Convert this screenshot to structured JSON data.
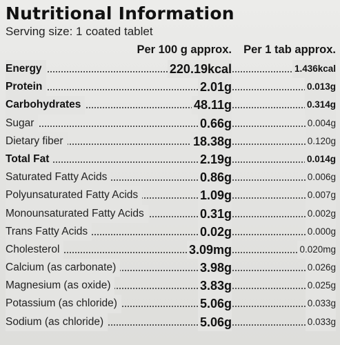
{
  "label": {
    "title": "Nutritional Information",
    "serving": "Serving size: 1 coated tablet",
    "col_per100": "Per 100 g approx.",
    "col_per1": "Per 1 tab approx.",
    "rows": [
      {
        "name": "Energy",
        "per100": "220.19kcal",
        "per1": "1.436kcal",
        "bold": true
      },
      {
        "name": "Protein",
        "per100": "2.01g",
        "per1": "0.013g",
        "bold": true
      },
      {
        "name": "Carbohydrates",
        "per100": "48.11g",
        "per1": "0.314g",
        "bold": true
      },
      {
        "name": "Sugar",
        "per100": "0.66g",
        "per1": "0.004g",
        "bold": false
      },
      {
        "name": "Dietary fiber",
        "per100": "18.38g",
        "per1": "0.120g",
        "bold": false
      },
      {
        "name": "Total Fat",
        "per100": "2.19g",
        "per1": "0.014g",
        "bold": true
      },
      {
        "name": "Saturated Fatty Acids",
        "per100": "0.86g",
        "per1": "0.006g",
        "bold": false
      },
      {
        "name": "Polyunsaturated Fatty Acids",
        "per100": "1.09g",
        "per1": "0.007g",
        "bold": false
      },
      {
        "name": "Monounsaturated Fatty Acids",
        "per100": "0.31g",
        "per1": "0.002g",
        "bold": false
      },
      {
        "name": "Trans Fatty Acids",
        "per100": "0.02g",
        "per1": "0.000g",
        "bold": false
      },
      {
        "name": "Cholesterol",
        "per100": "3.09mg",
        "per1": "0.020mg",
        "bold": false
      },
      {
        "name": "Calcium (as carbonate)",
        "per100": "3.98g",
        "per1": "0.026g",
        "bold": false
      },
      {
        "name": "Magnesium (as oxide)",
        "per100": "3.83g",
        "per1": "0.025g",
        "bold": false
      },
      {
        "name": "Potassium (as chloride)",
        "per100": "5.06g",
        "per1": "0.033g",
        "bold": false
      },
      {
        "name": "Sodium (as chloride)",
        "per100": "5.06g",
        "per1": "0.033g",
        "bold": false
      }
    ]
  }
}
